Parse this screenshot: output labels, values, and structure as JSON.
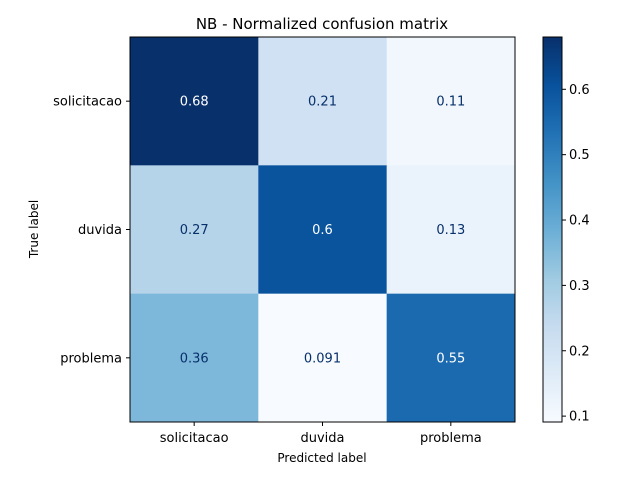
{
  "chart_data": {
    "type": "heatmap",
    "title": "NB - Normalized confusion matrix",
    "xlabel": "Predicted label",
    "ylabel": "True label",
    "x_categories": [
      "solicitacao",
      "duvida",
      "problema"
    ],
    "y_categories": [
      "solicitacao",
      "duvida",
      "problema"
    ],
    "values": [
      [
        0.68,
        0.21,
        0.11
      ],
      [
        0.27,
        0.6,
        0.13
      ],
      [
        0.36,
        0.091,
        0.55
      ]
    ],
    "cell_labels": [
      [
        "0.68",
        "0.21",
        "0.11"
      ],
      [
        "0.27",
        "0.6",
        "0.13"
      ],
      [
        "0.36",
        "0.091",
        "0.55"
      ]
    ],
    "colormap": "Blues",
    "colorbar": {
      "min": 0.091,
      "max": 0.68,
      "ticks": [
        0.1,
        0.2,
        0.3,
        0.4,
        0.5,
        0.6
      ],
      "tick_labels": [
        "0.1",
        "0.2",
        "0.3",
        "0.4",
        "0.5",
        "0.6"
      ]
    }
  }
}
